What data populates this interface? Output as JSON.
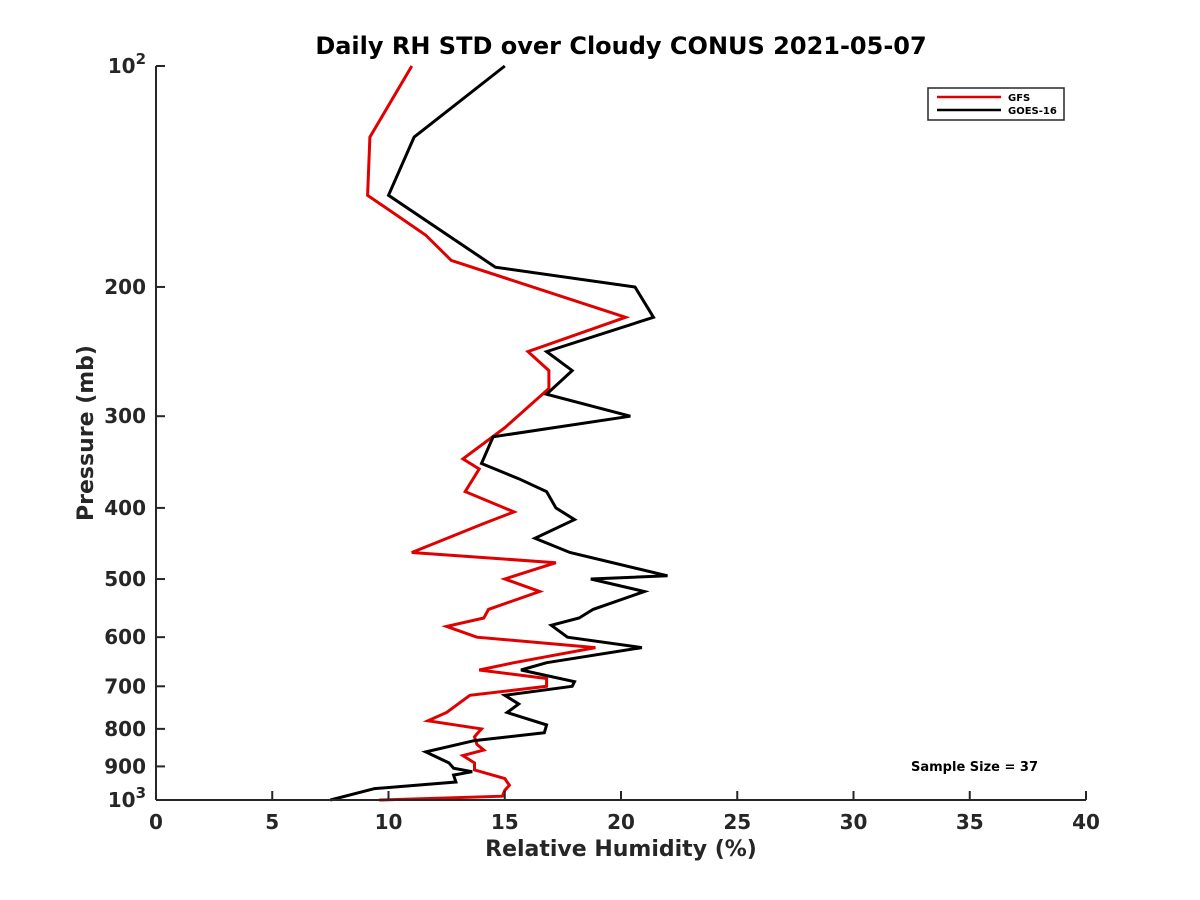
{
  "chart_data": {
    "type": "line",
    "title": "Daily RH STD over Cloudy CONUS 2021-05-07",
    "xlabel": "Relative Humidity (%)",
    "ylabel": "Pressure (mb)",
    "xlim": [
      0,
      40
    ],
    "ylim": [
      100,
      1000
    ],
    "y_scale": "log",
    "y_reversed": true,
    "x_ticks": [
      "0",
      "5",
      "10",
      "15",
      "20",
      "25",
      "30",
      "35",
      "40"
    ],
    "y_ticks": [
      {
        "value": 100,
        "base": "10",
        "exp": "2"
      },
      {
        "value": 200,
        "label": "200"
      },
      {
        "value": 300,
        "label": "300"
      },
      {
        "value": 400,
        "label": "400"
      },
      {
        "value": 500,
        "label": "500"
      },
      {
        "value": 600,
        "label": "600"
      },
      {
        "value": 700,
        "label": "700"
      },
      {
        "value": 800,
        "label": "800"
      },
      {
        "value": 900,
        "label": "900"
      },
      {
        "value": 1000,
        "base": "10",
        "exp": "3"
      }
    ],
    "grid": false,
    "legend_position": "top-right",
    "series": [
      {
        "name": "GFS",
        "color": "#e00000",
        "points": [
          [
            11.0,
            100
          ],
          [
            9.2,
            125
          ],
          [
            9.1,
            150
          ],
          [
            11.6,
            170
          ],
          [
            12.7,
            184
          ],
          [
            20.2,
            220
          ],
          [
            16.0,
            245
          ],
          [
            16.9,
            260
          ],
          [
            16.9,
            275
          ],
          [
            15.0,
            311
          ],
          [
            13.2,
            343
          ],
          [
            13.9,
            354
          ],
          [
            13.3,
            380
          ],
          [
            15.4,
            405
          ],
          [
            14.1,
            420
          ],
          [
            11.0,
            460
          ],
          [
            17.2,
            475
          ],
          [
            15.0,
            500
          ],
          [
            16.5,
            520
          ],
          [
            14.3,
            550
          ],
          [
            14.1,
            565
          ],
          [
            12.5,
            580
          ],
          [
            13.8,
            600
          ],
          [
            18.9,
            620
          ],
          [
            15.4,
            650
          ],
          [
            13.9,
            665
          ],
          [
            16.8,
            683
          ],
          [
            16.8,
            700
          ],
          [
            13.5,
            720
          ],
          [
            12.5,
            760
          ],
          [
            11.7,
            780
          ],
          [
            14.0,
            800
          ],
          [
            13.7,
            820
          ],
          [
            13.8,
            840
          ],
          [
            14.1,
            855
          ],
          [
            13.2,
            870
          ],
          [
            13.7,
            890
          ],
          [
            13.7,
            910
          ],
          [
            15.0,
            935
          ],
          [
            15.2,
            955
          ],
          [
            15.0,
            970
          ],
          [
            14.9,
            988
          ],
          [
            9.6,
            1000
          ]
        ]
      },
      {
        "name": "GOES-16",
        "color": "#000000",
        "points": [
          [
            15.0,
            100
          ],
          [
            11.1,
            125
          ],
          [
            10.0,
            150
          ],
          [
            14.6,
            188
          ],
          [
            20.6,
            200
          ],
          [
            21.4,
            220
          ],
          [
            16.8,
            245
          ],
          [
            17.9,
            260
          ],
          [
            16.8,
            280
          ],
          [
            20.4,
            300
          ],
          [
            14.5,
            320
          ],
          [
            14.0,
            348
          ],
          [
            15.6,
            365
          ],
          [
            16.8,
            380
          ],
          [
            17.2,
            400
          ],
          [
            18.0,
            415
          ],
          [
            16.3,
            440
          ],
          [
            17.8,
            460
          ],
          [
            22.0,
            495
          ],
          [
            18.7,
            500
          ],
          [
            21.0,
            520
          ],
          [
            18.8,
            550
          ],
          [
            18.2,
            565
          ],
          [
            17.0,
            578
          ],
          [
            17.7,
            600
          ],
          [
            20.9,
            620
          ],
          [
            16.8,
            650
          ],
          [
            15.7,
            665
          ],
          [
            18.0,
            690
          ],
          [
            17.9,
            700
          ],
          [
            15.0,
            720
          ],
          [
            15.6,
            740
          ],
          [
            15.1,
            760
          ],
          [
            16.8,
            790
          ],
          [
            16.7,
            810
          ],
          [
            13.7,
            830
          ],
          [
            11.6,
            860
          ],
          [
            12.6,
            890
          ],
          [
            12.8,
            905
          ],
          [
            13.6,
            915
          ],
          [
            12.8,
            925
          ],
          [
            12.9,
            945
          ],
          [
            9.4,
            965
          ],
          [
            7.5,
            1000
          ]
        ]
      }
    ],
    "annotations": [
      "Sample Size = 37"
    ]
  }
}
